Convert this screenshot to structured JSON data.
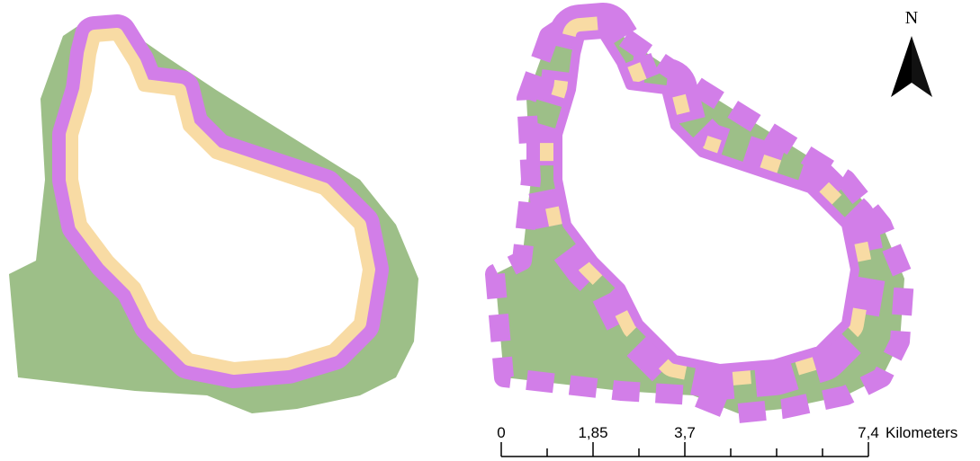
{
  "north_arrow": {
    "label": "N"
  },
  "scale_bar": {
    "labels": [
      "0",
      "1,85",
      "3,7",
      "7,4"
    ],
    "unit": "Kilometers"
  }
}
